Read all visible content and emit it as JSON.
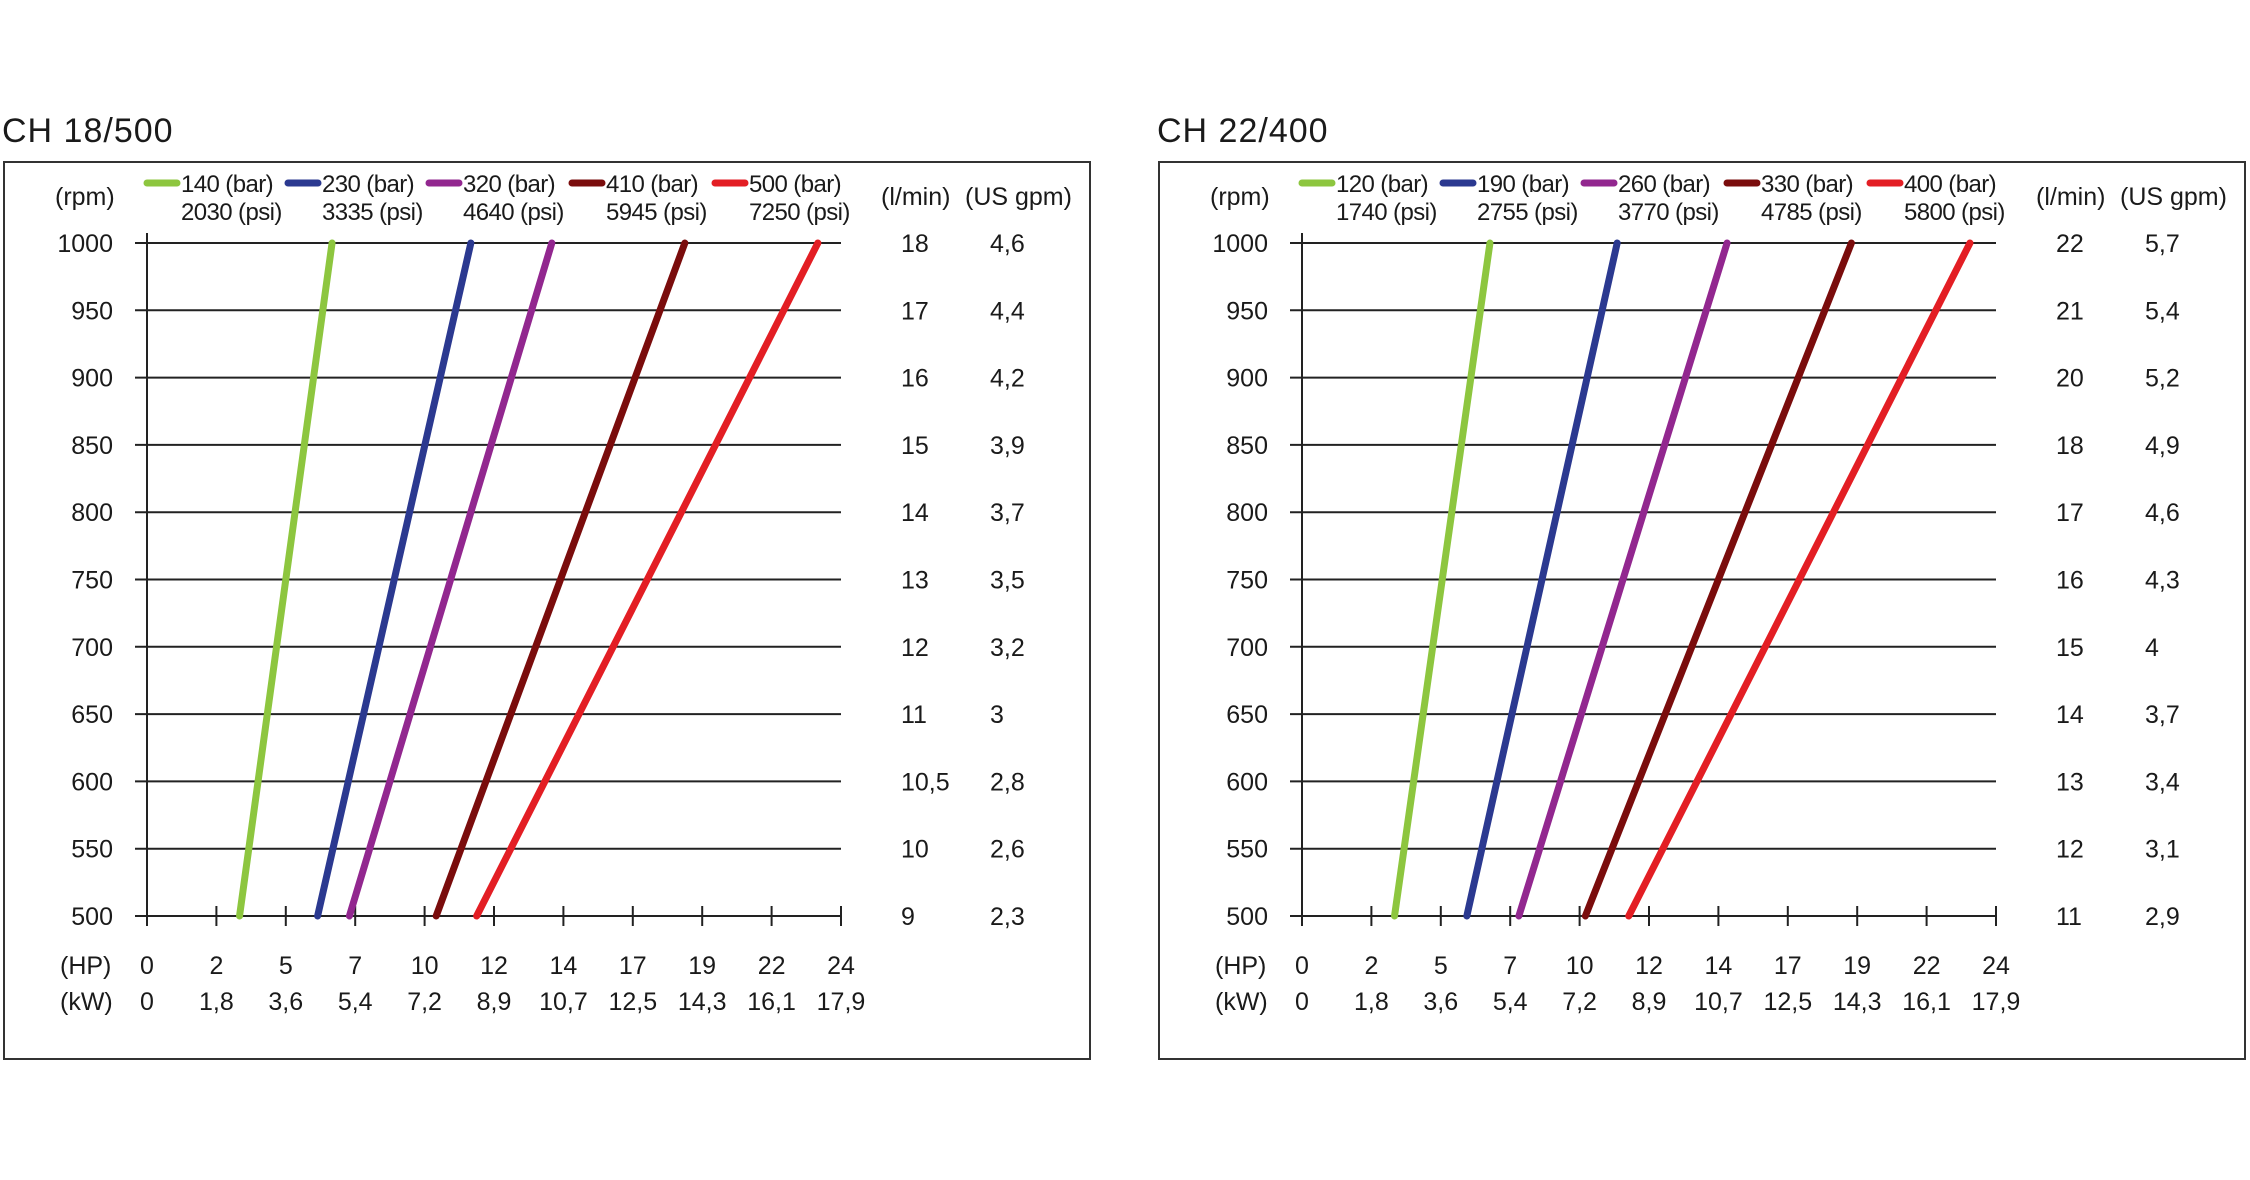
{
  "chart_data": [
    {
      "type": "line",
      "title": "CH 18/500",
      "y_left_label": "(rpm)",
      "y_right_labels": [
        "(l/min)",
        "(US gpm)"
      ],
      "x_labels": [
        "(HP)",
        "(kW)"
      ],
      "rpm_ticks": [
        "1000",
        "950",
        "900",
        "850",
        "800",
        "750",
        "700",
        "650",
        "600",
        "550",
        "500"
      ],
      "lmin_ticks": [
        "18",
        "17",
        "16",
        "15",
        "14",
        "13",
        "12",
        "11",
        "10,5",
        "10",
        "9"
      ],
      "gpm_ticks": [
        "4,6",
        "4,4",
        "4,2",
        "3,9",
        "3,7",
        "3,5",
        "3,2",
        "3",
        "2,8",
        "2,6",
        "2,3"
      ],
      "hp_ticks": [
        "0",
        "2",
        "5",
        "7",
        "10",
        "12",
        "14",
        "17",
        "19",
        "22",
        "24"
      ],
      "kw_ticks": [
        "0",
        "1,8",
        "3,6",
        "5,4",
        "7,2",
        "8,9",
        "10,7",
        "12,5",
        "14,3",
        "16,1",
        "17,9"
      ],
      "ylim": [
        500,
        1000
      ],
      "series": [
        {
          "bar": "140 (bar)",
          "psi": "2030 (psi)",
          "color": "#8dc63f",
          "x": [
            3.2,
            6.4
          ],
          "y": [
            500,
            1000
          ]
        },
        {
          "bar": "230 (bar)",
          "psi": "3335 (psi)",
          "color": "#2b3990",
          "x": [
            5.9,
            11.2
          ],
          "y": [
            500,
            1000
          ]
        },
        {
          "bar": "320 (bar)",
          "psi": "4640 (psi)",
          "color": "#92278f",
          "x": [
            7.0,
            14.0
          ],
          "y": [
            500,
            1000
          ]
        },
        {
          "bar": "410 (bar)",
          "psi": "5945 (psi)",
          "color": "#7a0c0c",
          "x": [
            10.0,
            18.6
          ],
          "y": [
            500,
            1000
          ]
        },
        {
          "bar": "500 (bar)",
          "psi": "7250 (psi)",
          "color": "#e31e24",
          "x": [
            11.4,
            23.2
          ],
          "y": [
            500,
            1000
          ]
        }
      ]
    },
    {
      "type": "line",
      "title": "CH 22/400",
      "y_left_label": "(rpm)",
      "y_right_labels": [
        "(l/min)",
        "(US gpm)"
      ],
      "x_labels": [
        "(HP)",
        "(kW)"
      ],
      "rpm_ticks": [
        "1000",
        "950",
        "900",
        "850",
        "800",
        "750",
        "700",
        "650",
        "600",
        "550",
        "500"
      ],
      "lmin_ticks": [
        "22",
        "21",
        "20",
        "18",
        "17",
        "16",
        "15",
        "14",
        "13",
        "12",
        "11"
      ],
      "gpm_ticks": [
        "5,7",
        "5,4",
        "5,2",
        "4,9",
        "4,6",
        "4,3",
        "4",
        "3,7",
        "3,4",
        "3,1",
        "2,9"
      ],
      "hp_ticks": [
        "0",
        "2",
        "5",
        "7",
        "10",
        "12",
        "14",
        "17",
        "19",
        "22",
        "24"
      ],
      "kw_ticks": [
        "0",
        "1,8",
        "3,6",
        "5,4",
        "7,2",
        "8,9",
        "10,7",
        "12,5",
        "14,3",
        "16,1",
        "17,9"
      ],
      "ylim": [
        500,
        1000
      ],
      "series": [
        {
          "bar": "120 (bar)",
          "psi": "1740 (psi)",
          "color": "#8dc63f",
          "x": [
            3.2,
            6.5
          ],
          "y": [
            500,
            1000
          ]
        },
        {
          "bar": "190 (bar)",
          "psi": "2755 (psi)",
          "color": "#2b3990",
          "x": [
            5.7,
            10.9
          ],
          "y": [
            500,
            1000
          ]
        },
        {
          "bar": "260 (bar)",
          "psi": "3770 (psi)",
          "color": "#92278f",
          "x": [
            7.5,
            14.7
          ],
          "y": [
            500,
            1000
          ]
        },
        {
          "bar": "330 (bar)",
          "psi": "4785 (psi)",
          "color": "#7a0c0c",
          "x": [
            9.8,
            19.0
          ],
          "y": [
            500,
            1000
          ]
        },
        {
          "bar": "400 (bar)",
          "psi": "5800 (psi)",
          "color": "#e31e24",
          "x": [
            11.3,
            23.1
          ],
          "y": [
            500,
            1000
          ]
        }
      ]
    }
  ]
}
